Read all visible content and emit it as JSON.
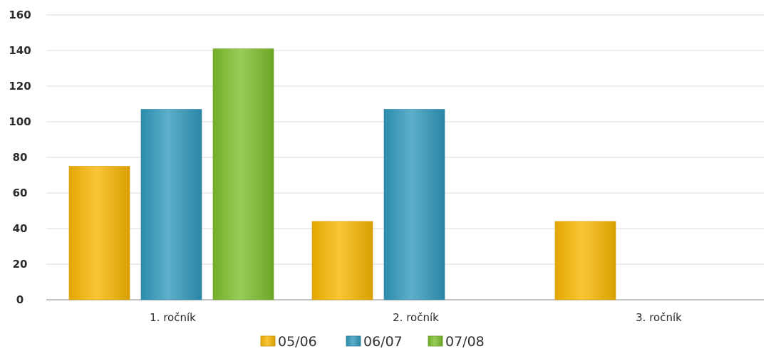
{
  "chart_data": {
    "type": "bar",
    "categories": [
      "1. ročník",
      "2. ročník",
      "3. ročník"
    ],
    "series": [
      {
        "name": "05/06",
        "values": [
          75,
          44,
          44
        ],
        "color": "#f7b500"
      },
      {
        "name": "06/07",
        "values": [
          107,
          107,
          null
        ],
        "color": "#2f98bb"
      },
      {
        "name": "07/08",
        "values": [
          141,
          null,
          null
        ],
        "color": "#7cbd2a"
      }
    ],
    "yticks": [
      0,
      20,
      40,
      60,
      80,
      100,
      120,
      140,
      160
    ],
    "ylim": [
      0,
      160
    ],
    "grid": true,
    "legend": "bottom-center"
  }
}
